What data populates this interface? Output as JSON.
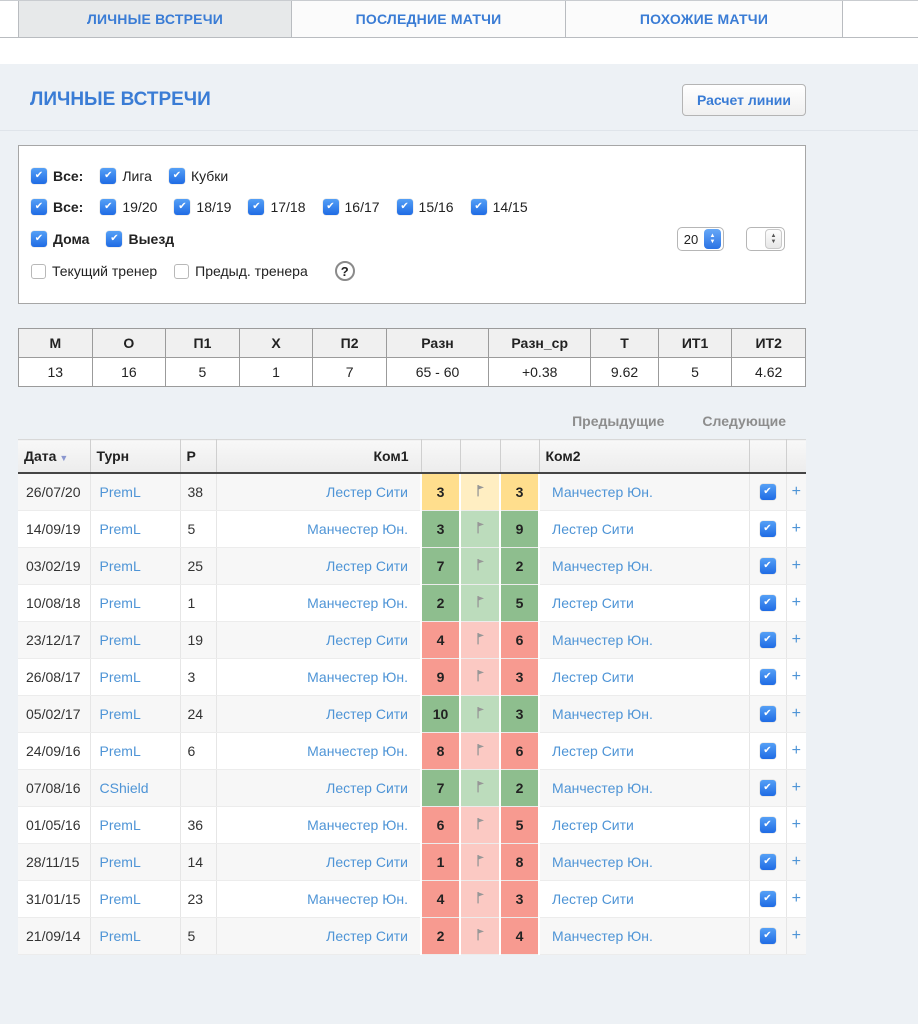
{
  "tabs": {
    "items": [
      {
        "label": "ЛИЧНЫЕ ВСТРЕЧИ"
      },
      {
        "label": "ПОСЛЕДНИЕ МАТЧИ"
      },
      {
        "label": "ПОХОЖИЕ МАТЧИ"
      }
    ]
  },
  "header": {
    "title": "ЛИЧНЫЕ ВСТРЕЧИ",
    "line_button": "Расчет линии"
  },
  "filters": {
    "all_competitions": "Все:",
    "league": "Лига",
    "cups": "Кубки",
    "all_seasons": "Все:",
    "seasons": [
      "19/20",
      "18/19",
      "17/18",
      "16/17",
      "15/16",
      "14/15"
    ],
    "home": "Дома",
    "away": "Выезд",
    "count_value": "20",
    "count2_value": "",
    "current_coach": "Текущий тренер",
    "previous_coach": "Предыд. тренера",
    "help": "?"
  },
  "summary": {
    "headers": [
      "М",
      "О",
      "П1",
      "Х",
      "П2",
      "Разн",
      "Разн_ср",
      "Т",
      "ИТ1",
      "ИТ2"
    ],
    "values": [
      "13",
      "16",
      "5",
      "1",
      "7",
      "65 - 60",
      "+0.38",
      "9.62",
      "5",
      "4.62"
    ]
  },
  "pager": {
    "previous": "Предыдущие",
    "next": "Следующие"
  },
  "matches": {
    "headers": {
      "date": "Дата",
      "tournament": "Турн",
      "round": "Р",
      "team1": "Ком1",
      "team2": "Ком2"
    },
    "plus": "+",
    "rows": [
      {
        "date": "26/07/20",
        "tournament": "PremL",
        "round": "38",
        "team1": "Лестер Сити",
        "score1": "3",
        "score2": "3",
        "team2": "Манчестер Юн.",
        "result": "draw",
        "checked": true
      },
      {
        "date": "14/09/19",
        "tournament": "PremL",
        "round": "5",
        "team1": "Манчестер Юн.",
        "score1": "3",
        "score2": "9",
        "team2": "Лестер Сити",
        "result": "win",
        "checked": true
      },
      {
        "date": "03/02/19",
        "tournament": "PremL",
        "round": "25",
        "team1": "Лестер Сити",
        "score1": "7",
        "score2": "2",
        "team2": "Манчестер Юн.",
        "result": "win",
        "checked": true
      },
      {
        "date": "10/08/18",
        "tournament": "PremL",
        "round": "1",
        "team1": "Манчестер Юн.",
        "score1": "2",
        "score2": "5",
        "team2": "Лестер Сити",
        "result": "win",
        "checked": true
      },
      {
        "date": "23/12/17",
        "tournament": "PremL",
        "round": "19",
        "team1": "Лестер Сити",
        "score1": "4",
        "score2": "6",
        "team2": "Манчестер Юн.",
        "result": "loss",
        "checked": true
      },
      {
        "date": "26/08/17",
        "tournament": "PremL",
        "round": "3",
        "team1": "Манчестер Юн.",
        "score1": "9",
        "score2": "3",
        "team2": "Лестер Сити",
        "result": "loss",
        "checked": true
      },
      {
        "date": "05/02/17",
        "tournament": "PremL",
        "round": "24",
        "team1": "Лестер Сити",
        "score1": "10",
        "score2": "3",
        "team2": "Манчестер Юн.",
        "result": "win",
        "checked": true
      },
      {
        "date": "24/09/16",
        "tournament": "PremL",
        "round": "6",
        "team1": "Манчестер Юн.",
        "score1": "8",
        "score2": "6",
        "team2": "Лестер Сити",
        "result": "loss",
        "checked": true
      },
      {
        "date": "07/08/16",
        "tournament": "CShield",
        "round": "",
        "team1": "Лестер Сити",
        "score1": "7",
        "score2": "2",
        "team2": "Манчестер Юн.",
        "result": "win",
        "checked": true
      },
      {
        "date": "01/05/16",
        "tournament": "PremL",
        "round": "36",
        "team1": "Манчестер Юн.",
        "score1": "6",
        "score2": "5",
        "team2": "Лестер Сити",
        "result": "loss",
        "checked": true
      },
      {
        "date": "28/11/15",
        "tournament": "PremL",
        "round": "14",
        "team1": "Лестер Сити",
        "score1": "1",
        "score2": "8",
        "team2": "Манчестер Юн.",
        "result": "loss",
        "checked": true
      },
      {
        "date": "31/01/15",
        "tournament": "PremL",
        "round": "23",
        "team1": "Манчестер Юн.",
        "score1": "4",
        "score2": "3",
        "team2": "Лестер Сити",
        "result": "loss",
        "checked": true
      },
      {
        "date": "21/09/14",
        "tournament": "PremL",
        "round": "5",
        "team1": "Лестер Сити",
        "score1": "2",
        "score2": "4",
        "team2": "Манчестер Юн.",
        "result": "loss",
        "checked": true
      }
    ]
  },
  "icons": {
    "sort_desc": "▼",
    "stepper_up": "▲",
    "stepper_down": "▼",
    "checkbox_check": "✔",
    "corner_flag": "corner-flag",
    "help_circle": "?"
  },
  "colors": {
    "accent": "#3a7cd5",
    "link": "#4e94d6",
    "draw": "#ffde8d",
    "draw_mid": "#ffeec2",
    "win": "#8ebe8e",
    "win_mid": "#bcdcbc",
    "loss": "#f79a90",
    "loss_mid": "#fbc9c3"
  }
}
